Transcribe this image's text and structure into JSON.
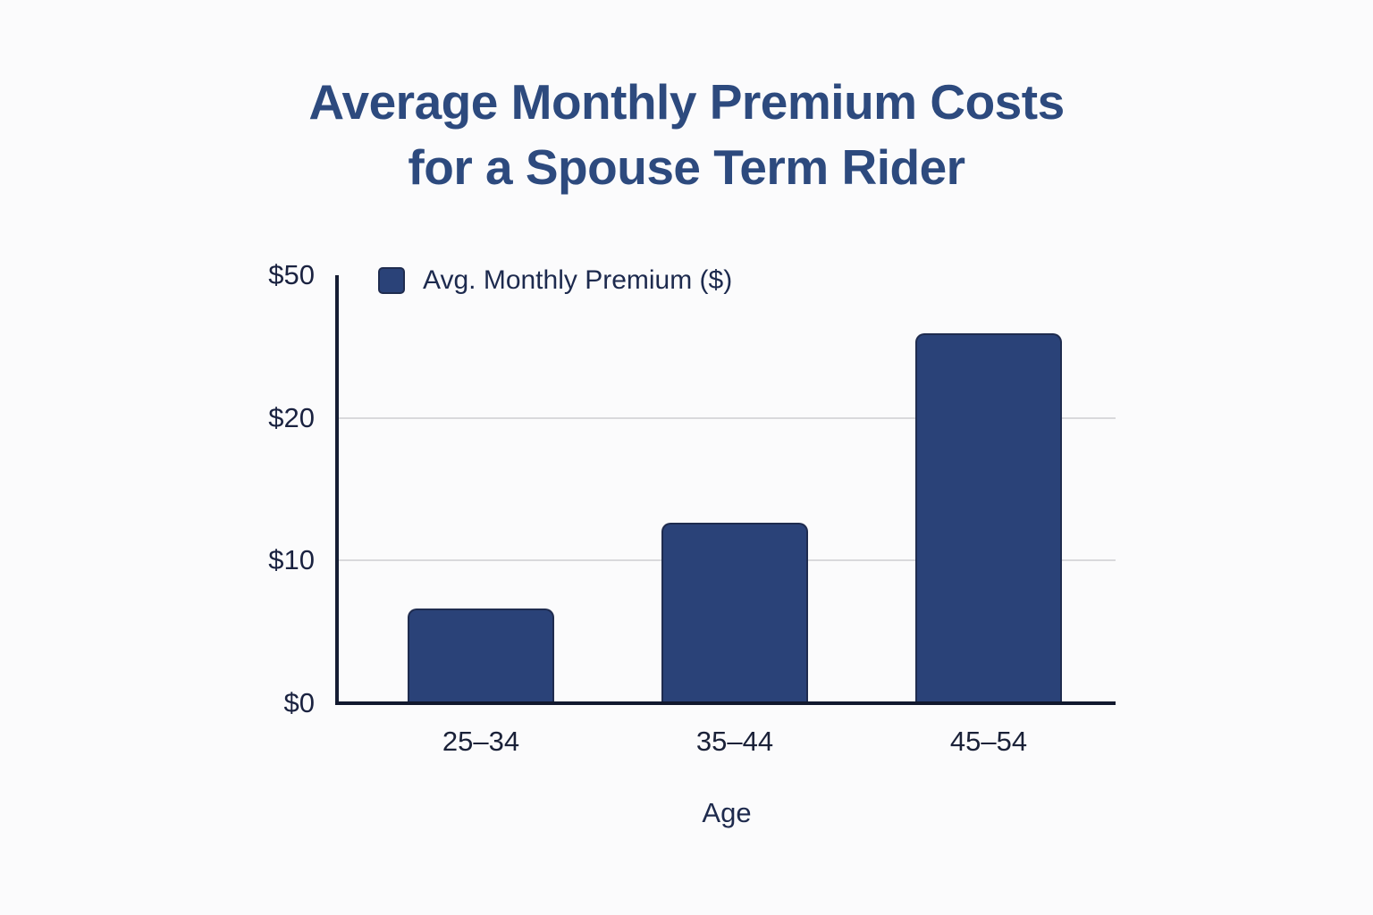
{
  "title": {
    "text": "Average Monthly Premium Costs\nfor a Spouse Term Rider",
    "color": "#2d4a7e"
  },
  "legend": {
    "label": "Avg. Monthly Premium ($)",
    "swatch_color": "#2a4278"
  },
  "chart_data": {
    "type": "bar",
    "title": "Average Monthly Premium Costs for a Spouse Term Rider",
    "categories": [
      "25–34",
      "35–44",
      "45–54"
    ],
    "series": [
      {
        "name": "Avg. Monthly Premium ($)",
        "values": [
          6.5,
          12.5,
          37.5
        ]
      }
    ],
    "xlabel": "Age",
    "ylabel": "",
    "y_ticks": [
      0,
      10,
      20,
      50
    ],
    "y_tick_labels": [
      "$0",
      "$10",
      "$20",
      "$50"
    ],
    "ylim": [
      0,
      50
    ],
    "axis_scale": "ticks equally spaced (nonlinear value axis)",
    "grid": "horizontal gridlines at $10 and $20 only",
    "legend_position": "top-left inside plot",
    "bar_color": "#2a4278",
    "bar_border_color": "#1f2c4f",
    "axis_line_color": "#151d33",
    "gridline_color": "#d9d9dc",
    "background_color": "#fbfbfc"
  }
}
